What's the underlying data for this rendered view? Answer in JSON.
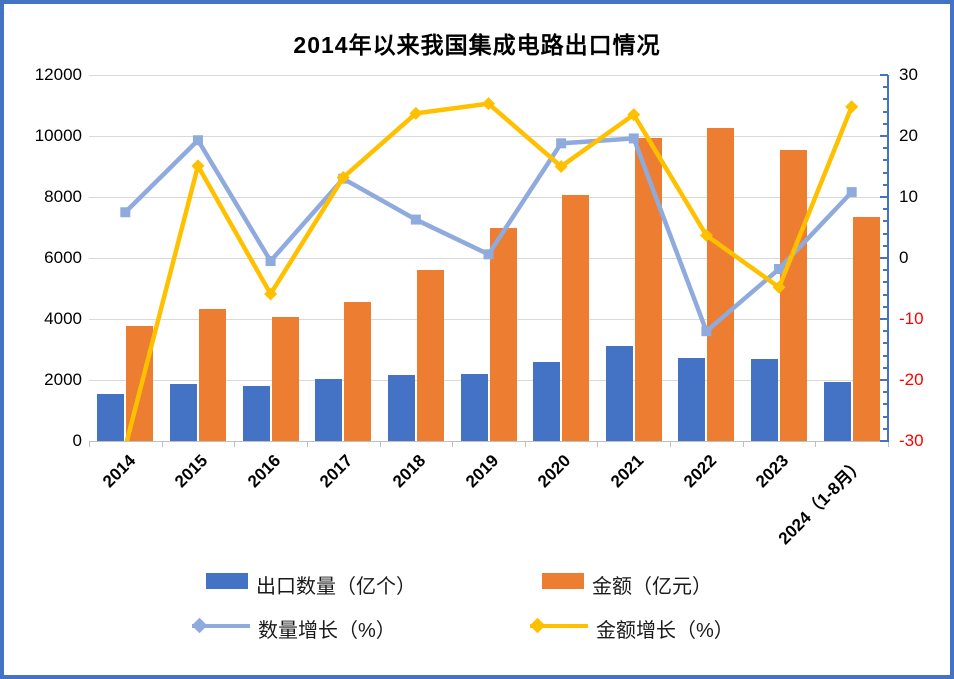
{
  "frame": {
    "border_color": "#4472C4"
  },
  "chart_data": {
    "type": "combo-bar-line",
    "title": "2014年以来我国集成电路出口情况",
    "categories": [
      "2014",
      "2015",
      "2016",
      "2017",
      "2018",
      "2019",
      "2020",
      "2021",
      "2022",
      "2023",
      "2024（1-8月）"
    ],
    "bar_series": [
      {
        "name": "出口数量（亿个）",
        "color": "#4472C4",
        "axis": "left",
        "values": [
          1536,
          1855,
          1810,
          2044,
          2171,
          2187,
          2598,
          3107,
          2734,
          2678,
          1930
        ]
      },
      {
        "name": "金额（亿元）",
        "color": "#ED7D31",
        "axis": "left",
        "values": [
          3757,
          4316,
          4050,
          4560,
          5600,
          7000,
          8056,
          9930,
          10250,
          9550,
          7360
        ]
      }
    ],
    "line_series": [
      {
        "name": "数量增长（%）",
        "color": "#8FAADC",
        "axis": "right",
        "marker": "square",
        "values": [
          7.5,
          19.3,
          -0.5,
          13.0,
          6.3,
          0.6,
          18.8,
          19.6,
          -12.0,
          -1.8,
          10.8
        ]
      },
      {
        "name": "金额增长（%）",
        "color": "#FFC000",
        "axis": "right",
        "marker": "diamond",
        "values": [
          -31,
          15.1,
          -5.9,
          13.2,
          23.7,
          25.3,
          15.0,
          23.5,
          3.7,
          -4.8,
          24.8
        ]
      }
    ],
    "left_axis": {
      "min": 0,
      "max": 12000,
      "step": 2000,
      "tick_labels": [
        "0",
        "2000",
        "4000",
        "6000",
        "8000",
        "10000",
        "12000"
      ]
    },
    "right_axis": {
      "min": -30,
      "max": 30,
      "step": 10,
      "minor_step": 2,
      "tick_labels": [
        "30",
        "20",
        "10",
        "0",
        "-10",
        "-20",
        "-30"
      ],
      "negative_label_color": "#FF0000"
    },
    "gridlines": true,
    "legend_position": "bottom"
  }
}
